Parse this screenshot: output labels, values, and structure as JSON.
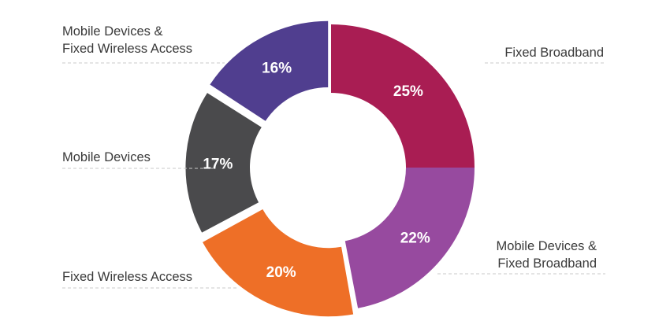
{
  "chart_data": {
    "type": "pie",
    "variant": "donut",
    "slices": [
      {
        "label": "Fixed Broadband",
        "label_lines": [
          "Fixed Broadband"
        ],
        "value": 25,
        "value_label": "25%",
        "color": "#a91d53"
      },
      {
        "label": "Mobile Devices & Fixed Broadband",
        "label_lines": [
          "Mobile Devices &",
          "Fixed Broadband"
        ],
        "value": 22,
        "value_label": "22%",
        "color": "#974a9f"
      },
      {
        "label": "Fixed Wireless Access",
        "label_lines": [
          "Fixed Wireless Access"
        ],
        "value": 20,
        "value_label": "20%",
        "color": "#ee6f27"
      },
      {
        "label": "Mobile Devices",
        "label_lines": [
          "Mobile Devices"
        ],
        "value": 17,
        "value_label": "17%",
        "color": "#4a4a4c"
      },
      {
        "label": "Mobile Devices & Fixed Wireless Access",
        "label_lines": [
          "Mobile Devices &",
          "Fixed Wireless Access"
        ],
        "value": 16,
        "value_label": "16%",
        "color": "#503e8f"
      }
    ],
    "label_color": "#3a3a3a",
    "value_label_color": "#ffffff"
  }
}
